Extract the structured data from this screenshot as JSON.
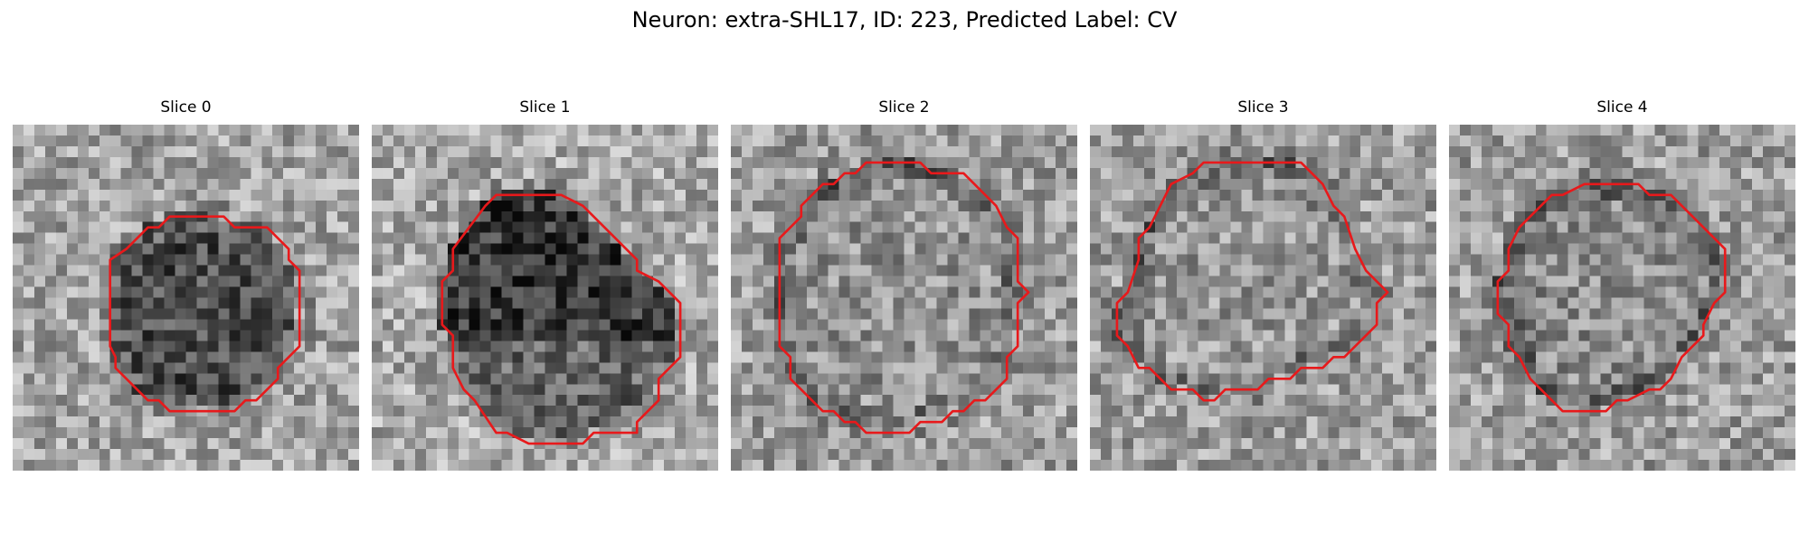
{
  "title": "Neuron: extra-SHL17, ID: 223, Predicted Label: CV",
  "contour_color": "#e8191b",
  "grid_size": 32,
  "slices": [
    {
      "label": "Slice 0",
      "contour": [
        [
          14.5,
          8.5
        ],
        [
          15.5,
          8.5
        ],
        [
          19.5,
          8.5
        ],
        [
          20.5,
          9.5
        ],
        [
          23.5,
          9.5
        ],
        [
          25.5,
          11.5
        ],
        [
          25.5,
          12.5
        ],
        [
          26.5,
          13.5
        ],
        [
          26.5,
          20.5
        ],
        [
          24.5,
          22.5
        ],
        [
          24.5,
          23.5
        ],
        [
          22.5,
          25.5
        ],
        [
          21.5,
          25.5
        ],
        [
          20.5,
          26.5
        ],
        [
          14.5,
          26.5
        ],
        [
          13.5,
          25.5
        ],
        [
          12.5,
          25.5
        ],
        [
          9.5,
          22.5
        ],
        [
          9.5,
          21.5
        ],
        [
          9.0,
          20.5
        ],
        [
          9.0,
          12.5
        ],
        [
          10.5,
          11.5
        ],
        [
          12.5,
          9.5
        ],
        [
          13.5,
          9.5
        ]
      ],
      "inside_level": 0.36,
      "outside_level": 0.64,
      "dark_band": "full"
    },
    {
      "label": "Slice 1",
      "contour": [
        [
          11.5,
          6.5
        ],
        [
          17.5,
          6.5
        ],
        [
          19.5,
          7.5
        ],
        [
          24.5,
          12.5
        ],
        [
          24.5,
          13.5
        ],
        [
          26.5,
          14.5
        ],
        [
          28.5,
          16.5
        ],
        [
          28.5,
          21.5
        ],
        [
          26.5,
          23.5
        ],
        [
          26.5,
          25.5
        ],
        [
          24.5,
          27.5
        ],
        [
          24.5,
          28.5
        ],
        [
          20.5,
          28.5
        ],
        [
          19.5,
          29.5
        ],
        [
          14.5,
          29.5
        ],
        [
          12.5,
          28.5
        ],
        [
          11.5,
          28.5
        ],
        [
          9.5,
          25.5
        ],
        [
          8.5,
          24.5
        ],
        [
          7.5,
          22.5
        ],
        [
          7.5,
          19.5
        ],
        [
          6.5,
          18.5
        ],
        [
          6.5,
          14.5
        ],
        [
          7.5,
          13.5
        ],
        [
          7.5,
          11.5
        ],
        [
          10.5,
          7.5
        ]
      ],
      "inside_level": 0.4,
      "outside_level": 0.66,
      "dark_band": "top"
    },
    {
      "label": "Slice 2",
      "contour": [
        [
          10.5,
          4.5
        ],
        [
          11.5,
          4.5
        ],
        [
          12.5,
          3.5
        ],
        [
          17.5,
          3.5
        ],
        [
          18.5,
          4.5
        ],
        [
          21.5,
          4.5
        ],
        [
          24.5,
          7.5
        ],
        [
          25.5,
          9.5
        ],
        [
          26.5,
          10.5
        ],
        [
          26.5,
          14.5
        ],
        [
          27.5,
          15.5
        ],
        [
          26.5,
          16.5
        ],
        [
          26.5,
          20.5
        ],
        [
          25.5,
          21.5
        ],
        [
          25.5,
          23.5
        ],
        [
          23.5,
          25.5
        ],
        [
          22.5,
          25.5
        ],
        [
          21.5,
          26.5
        ],
        [
          20.5,
          26.5
        ],
        [
          19.5,
          27.5
        ],
        [
          17.5,
          27.5
        ],
        [
          16.5,
          28.5
        ],
        [
          12.5,
          28.5
        ],
        [
          11.5,
          27.5
        ],
        [
          10.5,
          27.5
        ],
        [
          9.5,
          26.5
        ],
        [
          8.5,
          26.5
        ],
        [
          5.5,
          23.5
        ],
        [
          5.5,
          21.5
        ],
        [
          4.5,
          20.5
        ],
        [
          4.5,
          10.5
        ],
        [
          6.5,
          8.5
        ],
        [
          6.5,
          7.5
        ],
        [
          8.5,
          5.5
        ],
        [
          9.5,
          5.5
        ]
      ],
      "inside_level": 0.58,
      "outside_level": 0.62,
      "dark_band": "ring"
    },
    {
      "label": "Slice 3",
      "contour": [
        [
          10.5,
          3.5
        ],
        [
          19.5,
          3.5
        ],
        [
          20.5,
          4.5
        ],
        [
          21.5,
          5.5
        ],
        [
          22.5,
          7.5
        ],
        [
          23.5,
          8.5
        ],
        [
          24.5,
          11.5
        ],
        [
          25.5,
          13.5
        ],
        [
          26.5,
          14.5
        ],
        [
          27.5,
          15.5
        ],
        [
          26.5,
          16.5
        ],
        [
          26.5,
          18.5
        ],
        [
          24.5,
          20.5
        ],
        [
          23.5,
          21.5
        ],
        [
          22.5,
          21.5
        ],
        [
          21.5,
          22.5
        ],
        [
          19.5,
          22.5
        ],
        [
          18.5,
          23.5
        ],
        [
          16.5,
          23.5
        ],
        [
          15.5,
          24.5
        ],
        [
          12.5,
          24.5
        ],
        [
          11.5,
          25.5
        ],
        [
          10.5,
          25.5
        ],
        [
          9.5,
          24.5
        ],
        [
          7.5,
          24.5
        ],
        [
          5.5,
          22.5
        ],
        [
          4.5,
          22.5
        ],
        [
          3.5,
          20.5
        ],
        [
          2.5,
          19.5
        ],
        [
          2.5,
          16.5
        ],
        [
          3.5,
          15.5
        ],
        [
          4.5,
          12.5
        ],
        [
          4.5,
          10.5
        ],
        [
          5.5,
          9.5
        ],
        [
          6.5,
          7.5
        ],
        [
          7.5,
          5.5
        ],
        [
          9.5,
          4.5
        ]
      ],
      "inside_level": 0.6,
      "outside_level": 0.62,
      "dark_band": "ring"
    },
    {
      "label": "Slice 4",
      "contour": [
        [
          12.5,
          5.5
        ],
        [
          17.5,
          5.5
        ],
        [
          18.5,
          6.5
        ],
        [
          20.5,
          6.5
        ],
        [
          22.5,
          8.5
        ],
        [
          23.5,
          9.5
        ],
        [
          25.5,
          11.5
        ],
        [
          25.5,
          15.5
        ],
        [
          24.5,
          16.5
        ],
        [
          23.5,
          18.5
        ],
        [
          23.5,
          19.5
        ],
        [
          22.5,
          20.5
        ],
        [
          21.5,
          21.5
        ],
        [
          20.5,
          23.5
        ],
        [
          19.5,
          24.5
        ],
        [
          18.5,
          24.5
        ],
        [
          16.5,
          25.5
        ],
        [
          15.5,
          25.5
        ],
        [
          14.5,
          26.5
        ],
        [
          10.5,
          26.5
        ],
        [
          9.5,
          25.5
        ],
        [
          8.5,
          24.5
        ],
        [
          7.5,
          23.5
        ],
        [
          6.5,
          21.5
        ],
        [
          5.5,
          20.5
        ],
        [
          5.5,
          18.5
        ],
        [
          4.5,
          17.5
        ],
        [
          4.5,
          14.5
        ],
        [
          5.5,
          13.5
        ],
        [
          5.5,
          11.5
        ],
        [
          6.5,
          9.5
        ],
        [
          7.5,
          8.5
        ],
        [
          9.5,
          6.5
        ],
        [
          10.5,
          6.5
        ]
      ],
      "inside_level": 0.56,
      "outside_level": 0.62,
      "dark_band": "ring"
    }
  ]
}
